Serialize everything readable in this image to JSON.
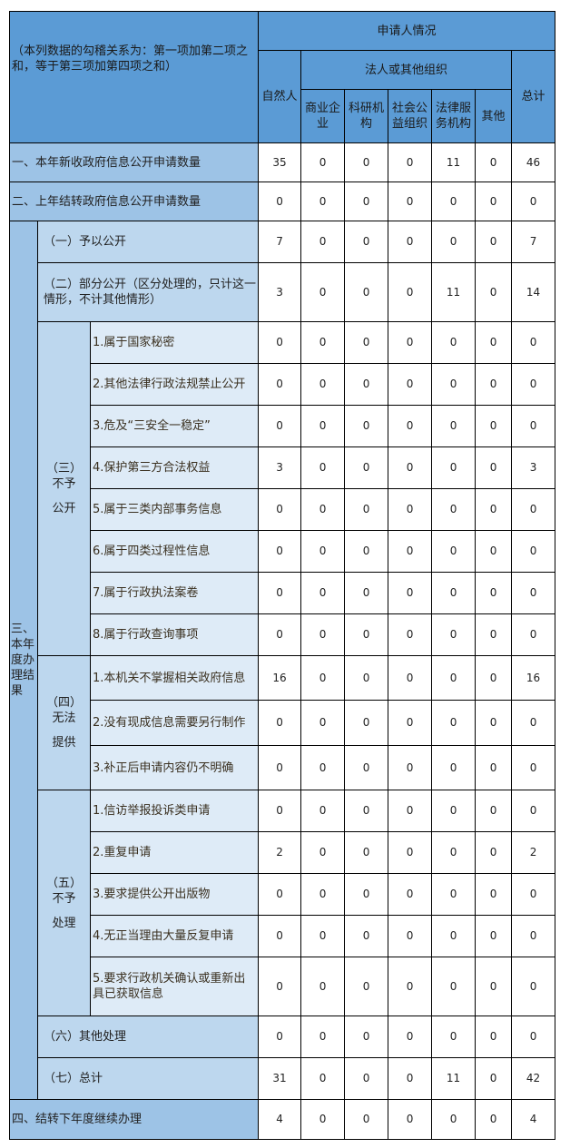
{
  "header": {
    "note": "（本列数据的勾稽关系为：第一项加第二项之和，等于第三项加第四项之和）",
    "applicant": "申请人情况",
    "natural_person": "自然人",
    "legal_entity": "法人或其他组织",
    "total": "总计",
    "sub_columns": [
      "商业企业",
      "科研机构",
      "社会公益组织",
      "法律服务机构",
      "其他"
    ]
  },
  "section3_label": "三、本年度办理结果",
  "groups": {
    "not_disclosed": [
      "（三）",
      "不予",
      "公开"
    ],
    "cannot_provide": [
      "（四）",
      "无法",
      "提供"
    ],
    "not_processed": [
      "（五）",
      "不予",
      "处理"
    ]
  },
  "rows": [
    {
      "label": "一、本年新收政府信息公开申请数量",
      "values": [
        35,
        0,
        0,
        0,
        11,
        0,
        46
      ]
    },
    {
      "label": "二、上年结转政府信息公开申请数量",
      "values": [
        0,
        0,
        0,
        0,
        0,
        0,
        0
      ]
    },
    {
      "label": "（一）予以公开",
      "values": [
        7,
        0,
        0,
        0,
        0,
        0,
        7
      ]
    },
    {
      "label": "（二）部分公开（区分处理的，只计这一情形，不计其他情形）",
      "values": [
        3,
        0,
        0,
        0,
        11,
        0,
        14
      ]
    },
    {
      "label": "1.属于国家秘密",
      "values": [
        0,
        0,
        0,
        0,
        0,
        0,
        0
      ]
    },
    {
      "label": "2.其他法律行政法规禁止公开",
      "values": [
        0,
        0,
        0,
        0,
        0,
        0,
        0
      ]
    },
    {
      "label": "3.危及“三安全一稳定”",
      "values": [
        0,
        0,
        0,
        0,
        0,
        0,
        0
      ]
    },
    {
      "label": "4.保护第三方合法权益",
      "values": [
        3,
        0,
        0,
        0,
        0,
        0,
        3
      ]
    },
    {
      "label": "5.属于三类内部事务信息",
      "values": [
        0,
        0,
        0,
        0,
        0,
        0,
        0
      ]
    },
    {
      "label": "6.属于四类过程性信息",
      "values": [
        0,
        0,
        0,
        0,
        0,
        0,
        0
      ]
    },
    {
      "label": "7.属于行政执法案卷",
      "values": [
        0,
        0,
        0,
        0,
        0,
        0,
        0
      ]
    },
    {
      "label": "8.属于行政查询事项",
      "values": [
        0,
        0,
        0,
        0,
        0,
        0,
        0
      ]
    },
    {
      "label": "1.本机关不掌握相关政府信息",
      "values": [
        16,
        0,
        0,
        0,
        0,
        0,
        16
      ]
    },
    {
      "label": "2.没有现成信息需要另行制作",
      "values": [
        0,
        0,
        0,
        0,
        0,
        0,
        0
      ]
    },
    {
      "label": "3.补正后申请内容仍不明确",
      "values": [
        0,
        0,
        0,
        0,
        0,
        0,
        0
      ]
    },
    {
      "label": "1.信访举报投诉类申请",
      "values": [
        0,
        0,
        0,
        0,
        0,
        0,
        0
      ]
    },
    {
      "label": "2.重复申请",
      "values": [
        2,
        0,
        0,
        0,
        0,
        0,
        2
      ]
    },
    {
      "label": "3.要求提供公开出版物",
      "values": [
        0,
        0,
        0,
        0,
        0,
        0,
        0
      ]
    },
    {
      "label": "4.无正当理由大量反复申请",
      "values": [
        0,
        0,
        0,
        0,
        0,
        0,
        0
      ]
    },
    {
      "label": "5.要求行政机关确认或重新出具已获取信息",
      "values": [
        0,
        0,
        0,
        0,
        0,
        0,
        0
      ]
    },
    {
      "label": "（六）其他处理",
      "values": [
        0,
        0,
        0,
        0,
        0,
        0,
        0
      ]
    },
    {
      "label": "（七）总计",
      "values": [
        31,
        0,
        0,
        0,
        11,
        0,
        42
      ]
    },
    {
      "label": "四、结转下年度继续办理",
      "values": [
        4,
        0,
        0,
        0,
        0,
        0,
        4
      ]
    }
  ]
}
